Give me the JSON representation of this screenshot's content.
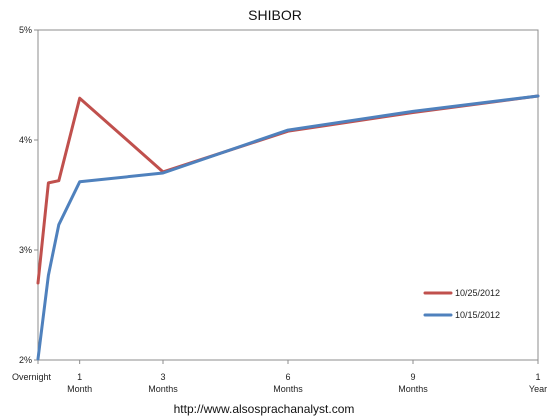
{
  "chart_data": {
    "type": "line",
    "title": "SHIBOR",
    "xlabel": "",
    "ylabel": "",
    "x_ticks": [
      {
        "position": 0,
        "lines": [
          "Overnight"
        ]
      },
      {
        "position": 1,
        "lines": [
          "1",
          "Month"
        ]
      },
      {
        "position": 3,
        "lines": [
          "3",
          "Months"
        ]
      },
      {
        "position": 6,
        "lines": [
          "6",
          "Months"
        ]
      },
      {
        "position": 9,
        "lines": [
          "9",
          "Months"
        ]
      },
      {
        "position": 12,
        "lines": [
          "1",
          "Year"
        ]
      }
    ],
    "y_ticks": [
      {
        "value": 2,
        "label": "2%"
      },
      {
        "value": 3,
        "label": "3%"
      },
      {
        "value": 4,
        "label": "4%"
      },
      {
        "value": 5,
        "label": "5%"
      }
    ],
    "xlim": [
      0,
      12
    ],
    "ylim": [
      2,
      5
    ],
    "grid": false,
    "legend_position": "bottom-right",
    "series": [
      {
        "name": "10/25/2012",
        "color": "#C0504D",
        "points": [
          {
            "x": 0,
            "y": 2.7
          },
          {
            "x": 0.25,
            "y": 3.61
          },
          {
            "x": 0.5,
            "y": 3.63
          },
          {
            "x": 1,
            "y": 4.38
          },
          {
            "x": 3,
            "y": 3.71
          },
          {
            "x": 6,
            "y": 4.08
          },
          {
            "x": 9,
            "y": 4.25
          },
          {
            "x": 12,
            "y": 4.4
          }
        ]
      },
      {
        "name": "10/15/2012",
        "color": "#4F81BD",
        "points": [
          {
            "x": 0,
            "y": 2.01
          },
          {
            "x": 0.25,
            "y": 2.77
          },
          {
            "x": 0.5,
            "y": 3.23
          },
          {
            "x": 1,
            "y": 3.62
          },
          {
            "x": 3,
            "y": 3.7
          },
          {
            "x": 6,
            "y": 4.09
          },
          {
            "x": 9,
            "y": 4.26
          },
          {
            "x": 12,
            "y": 4.4
          }
        ]
      }
    ],
    "source_text": "http://www.alsosprachanalyst.com"
  }
}
